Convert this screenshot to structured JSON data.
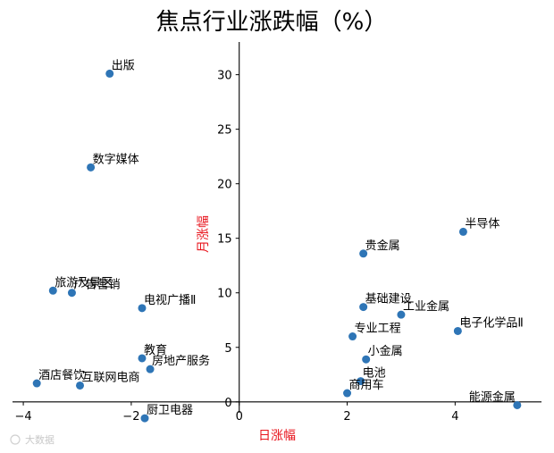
{
  "chart_data": {
    "type": "scatter",
    "title": "焦点行业涨跌幅（%）",
    "xlabel": "日涨幅",
    "ylabel": "月涨幅",
    "axis_label_color": "#e8141c",
    "point_color": "#2e75b6",
    "xlim": [
      -4.2,
      5.6
    ],
    "ylim": [
      -1.0,
      33.0
    ],
    "x_ticks": [
      -4,
      -2,
      0,
      2,
      4
    ],
    "x_tick_labels": [
      "−4",
      "−2",
      "0",
      "2",
      "4"
    ],
    "y_ticks": [
      0,
      5,
      10,
      15,
      20,
      25,
      30
    ],
    "y_tick_labels": [
      "0",
      "5",
      "10",
      "15",
      "20",
      "25",
      "30"
    ],
    "grid": false,
    "points": [
      {
        "label": "出版",
        "x": -2.4,
        "y": 30.1
      },
      {
        "label": "数字媒体",
        "x": -2.75,
        "y": 21.5
      },
      {
        "label": "旅游及景区",
        "x": -3.45,
        "y": 10.2
      },
      {
        "label": "广告营销",
        "x": -3.1,
        "y": 10.0
      },
      {
        "label": "电视广播Ⅱ",
        "x": -1.8,
        "y": 8.6
      },
      {
        "label": "教育",
        "x": -1.8,
        "y": 4.0
      },
      {
        "label": "房地产服务",
        "x": -1.65,
        "y": 3.0
      },
      {
        "label": "酒店餐饮",
        "x": -3.75,
        "y": 1.7
      },
      {
        "label": "互联网电商",
        "x": -2.95,
        "y": 1.5
      },
      {
        "label": "厨卫电器",
        "x": -1.75,
        "y": -1.5
      },
      {
        "label": "半导体",
        "x": 4.15,
        "y": 15.6
      },
      {
        "label": "贵金属",
        "x": 2.3,
        "y": 13.6
      },
      {
        "label": "基础建设",
        "x": 2.3,
        "y": 8.7
      },
      {
        "label": "工业金属",
        "x": 3.0,
        "y": 8.0
      },
      {
        "label": "专业工程",
        "x": 2.1,
        "y": 6.0
      },
      {
        "label": "电子化学品Ⅱ",
        "x": 4.05,
        "y": 6.5
      },
      {
        "label": "小金属",
        "x": 2.35,
        "y": 3.9
      },
      {
        "label": "电池",
        "x": 2.25,
        "y": 1.9
      },
      {
        "label": "商用车",
        "x": 2.0,
        "y": 0.8
      },
      {
        "label": "能源金属",
        "x": 5.15,
        "y": -0.3
      }
    ]
  },
  "watermark": "大数据"
}
